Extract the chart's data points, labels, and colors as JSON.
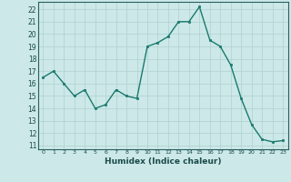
{
  "x": [
    0,
    1,
    2,
    3,
    4,
    5,
    6,
    7,
    8,
    9,
    10,
    11,
    12,
    13,
    14,
    15,
    16,
    17,
    18,
    19,
    20,
    21,
    22,
    23
  ],
  "y": [
    16.5,
    17.0,
    16.0,
    15.0,
    15.5,
    14.0,
    14.3,
    15.5,
    15.0,
    14.8,
    19.0,
    19.3,
    19.8,
    21.0,
    21.0,
    22.2,
    19.5,
    19.0,
    17.5,
    14.8,
    12.7,
    11.5,
    11.3,
    11.4
  ],
  "line_color": "#1a7a6e",
  "marker_color": "#1a7a6e",
  "bg_color": "#cce8e8",
  "grid_color": "#b0d0d0",
  "xlabel": "Humidex (Indice chaleur)",
  "ylabel_ticks": [
    11,
    12,
    13,
    14,
    15,
    16,
    17,
    18,
    19,
    20,
    21,
    22
  ],
  "ylim": [
    10.7,
    22.6
  ],
  "xlim": [
    -0.5,
    23.5
  ],
  "title": ""
}
